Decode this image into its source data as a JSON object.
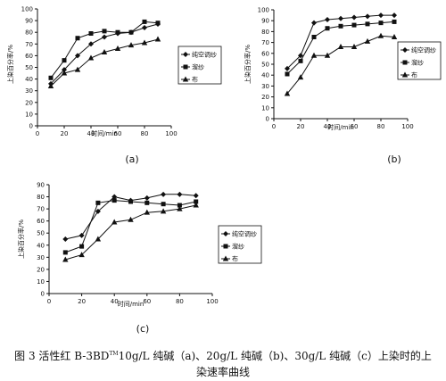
{
  "figure": {
    "caption_prefix": "图 3 活性红 B-3BD",
    "caption_sup": "TM",
    "caption_rest": "10g/L 纯碱（a)、20g/L 纯碱（b)、30g/L 纯碱（c）上染时的上",
    "caption_line2": "染速率曲线"
  },
  "chart_data": [
    {
      "type": "line",
      "panel_label": "(a)",
      "xlabel": "时间/min",
      "ylabel": "上染百分率/%",
      "xlim": [
        0,
        100
      ],
      "ylim": [
        0,
        100
      ],
      "xticks": [
        0,
        20,
        40,
        60,
        80,
        100
      ],
      "yticks": [
        0,
        10,
        20,
        30,
        40,
        50,
        60,
        70,
        80,
        90,
        100
      ],
      "legend_position": "right",
      "series": [
        {
          "name": "纯空调纱",
          "marker": "diamond",
          "x": [
            10,
            20,
            30,
            40,
            50,
            60,
            70,
            80,
            90
          ],
          "y": [
            36,
            48,
            60,
            70,
            76,
            79,
            80,
            84,
            87
          ]
        },
        {
          "name": "溜纱",
          "marker": "square",
          "x": [
            10,
            20,
            30,
            40,
            50,
            60,
            70,
            80,
            90
          ],
          "y": [
            41,
            56,
            75,
            79,
            81,
            80,
            80,
            89,
            88
          ]
        },
        {
          "name": "布",
          "marker": "triangle",
          "x": [
            10,
            20,
            30,
            40,
            50,
            60,
            70,
            80,
            90
          ],
          "y": [
            34,
            45,
            48,
            58,
            63,
            66,
            69,
            71,
            74
          ]
        }
      ]
    },
    {
      "type": "line",
      "panel_label": "(b)",
      "xlabel": "时间/min",
      "ylabel": "上染百分率/%",
      "xlim": [
        0,
        100
      ],
      "ylim": [
        0,
        100
      ],
      "xticks": [
        0,
        20,
        40,
        60,
        80,
        100
      ],
      "yticks": [
        0,
        10,
        20,
        30,
        40,
        50,
        60,
        70,
        80,
        90,
        100
      ],
      "legend_position": "right",
      "series": [
        {
          "name": "纯空调纱",
          "marker": "diamond",
          "x": [
            10,
            20,
            30,
            40,
            50,
            60,
            70,
            80,
            90
          ],
          "y": [
            46,
            58,
            88,
            91,
            92,
            93,
            94,
            95,
            95
          ]
        },
        {
          "name": "溜纱",
          "marker": "square",
          "x": [
            10,
            20,
            30,
            40,
            50,
            60,
            70,
            80,
            90
          ],
          "y": [
            41,
            53,
            75,
            83,
            85,
            86,
            87,
            88,
            89
          ]
        },
        {
          "name": "布",
          "marker": "triangle",
          "x": [
            10,
            20,
            30,
            40,
            50,
            60,
            70,
            80,
            90
          ],
          "y": [
            23,
            38,
            58,
            58,
            66,
            66,
            71,
            76,
            75
          ]
        }
      ]
    },
    {
      "type": "line",
      "panel_label": "(c)",
      "xlabel": "时间/min",
      "ylabel": "上染百分率/%",
      "xlim": [
        0,
        100
      ],
      "ylim": [
        0,
        90
      ],
      "xticks": [
        0,
        20,
        40,
        60,
        80,
        100
      ],
      "yticks": [
        0,
        10,
        20,
        30,
        40,
        50,
        60,
        70,
        80,
        90
      ],
      "legend_position": "right",
      "series": [
        {
          "name": "纯空调纱",
          "marker": "diamond",
          "x": [
            10,
            20,
            30,
            40,
            50,
            60,
            70,
            80,
            90
          ],
          "y": [
            45,
            48,
            68,
            80,
            77,
            79,
            82,
            82,
            81
          ]
        },
        {
          "name": "溜纱",
          "marker": "square",
          "x": [
            10,
            20,
            30,
            40,
            50,
            60,
            70,
            80,
            90
          ],
          "y": [
            34,
            39,
            75,
            77,
            76,
            75,
            74,
            73,
            76
          ]
        },
        {
          "name": "布",
          "marker": "triangle",
          "x": [
            10,
            20,
            30,
            40,
            50,
            60,
            70,
            80,
            90
          ],
          "y": [
            28,
            32,
            45,
            59,
            61,
            67,
            68,
            70,
            73
          ]
        }
      ]
    }
  ]
}
